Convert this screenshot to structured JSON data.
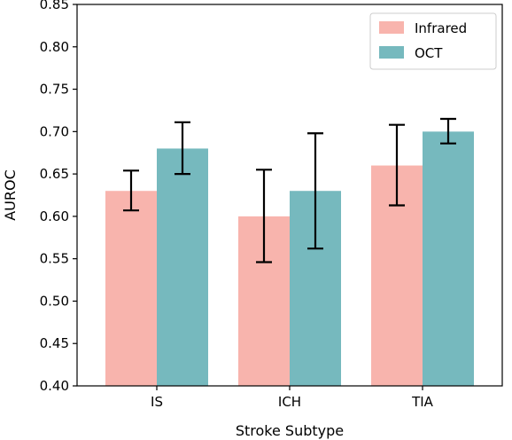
{
  "chart_data": {
    "type": "bar",
    "title": "",
    "xlabel": "Stroke Subtype",
    "ylabel": "AUROC",
    "categories": [
      "IS",
      "ICH",
      "TIA"
    ],
    "ylim": [
      0.4,
      0.85
    ],
    "yticks": [
      0.4,
      0.45,
      0.5,
      0.55,
      0.6,
      0.65,
      0.7,
      0.75,
      0.8,
      0.85
    ],
    "ytick_labels": [
      "0.40",
      "0.45",
      "0.50",
      "0.55",
      "0.60",
      "0.65",
      "0.70",
      "0.75",
      "0.80",
      "0.85"
    ],
    "grid": false,
    "legend_position": "top-right",
    "series": [
      {
        "name": "Infrared",
        "color": "#f8b4ad",
        "values": [
          0.63,
          0.6,
          0.66
        ],
        "err_low": [
          0.607,
          0.546,
          0.613
        ],
        "err_high": [
          0.654,
          0.655,
          0.708
        ]
      },
      {
        "name": "OCT",
        "color": "#76b9be",
        "values": [
          0.68,
          0.63,
          0.7
        ],
        "err_low": [
          0.65,
          0.562,
          0.686
        ],
        "err_high": [
          0.711,
          0.698,
          0.715
        ]
      }
    ]
  }
}
